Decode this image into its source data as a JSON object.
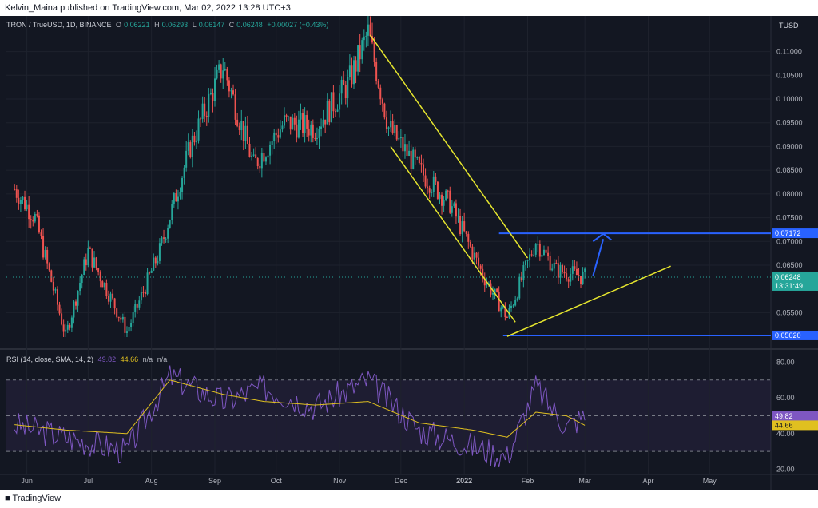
{
  "header": {
    "publisher": "Kelvin_Maina published on TradingView.com, Mar 02, 2022 13:28 UTC+3"
  },
  "footer": {
    "brand": "TradingView"
  },
  "legend": {
    "symbol": "TRON / TrueUSD, 1D, BINANCE",
    "o_label": "O",
    "o": "0.06221",
    "h_label": "H",
    "h": "0.06293",
    "l_label": "L",
    "l": "0.06147",
    "c_label": "C",
    "c": "0.06248",
    "change": "+0.00027 (+0.43%)"
  },
  "rsi_legend": {
    "name": "RSI (14, close, SMA, 14, 2)",
    "rsi": "49.82",
    "sma": "44.66",
    "na1": "n/a",
    "na2": "n/a"
  },
  "currency": "TUSD",
  "price_axis": {
    "ticks": [
      "0.11000",
      "0.10500",
      "0.10000",
      "0.09500",
      "0.09000",
      "0.08500",
      "0.08000",
      "0.07500",
      "0.07000",
      "0.06500",
      "0.05500"
    ]
  },
  "rsi_axis": {
    "ticks": [
      "80.00",
      "60.00",
      "40.00",
      "20.00"
    ]
  },
  "time_axis": {
    "labels": [
      "Jun",
      "Jul",
      "Aug",
      "Sep",
      "Oct",
      "Nov",
      "Dec",
      "2022",
      "Feb",
      "Mar",
      "Apr",
      "May"
    ]
  },
  "price_tags": {
    "resistance": "0.07172",
    "last": "0.06248",
    "countdown": "13:31:49",
    "support": "0.05020",
    "rsi": "49.82",
    "rsi_sma": "44.66"
  },
  "colors": {
    "up": "#26a69a",
    "down": "#ef5350",
    "bg": "#131722",
    "trendline": "#e6e62e",
    "level": "#2962ff",
    "rsi": "#7e57c2",
    "rsi_sma": "#e0c020"
  },
  "chart_data": [
    {
      "type": "line",
      "description": "TRXUSD daily candlestick, approximate close path",
      "x": [
        "2021-05-26",
        "2021-06-05",
        "2021-06-20",
        "2021-07-01",
        "2021-07-20",
        "2021-08-05",
        "2021-08-20",
        "2021-09-05",
        "2021-09-20",
        "2021-10-05",
        "2021-10-20",
        "2021-11-05",
        "2021-11-15",
        "2021-11-25",
        "2021-12-10",
        "2021-12-25",
        "2022-01-10",
        "2022-01-22",
        "2022-02-05",
        "2022-02-15",
        "2022-03-01"
      ],
      "series": [
        {
          "values": [
            0.081,
            0.075,
            0.05,
            0.068,
            0.051,
            0.068,
            0.09,
            0.107,
            0.086,
            0.095,
            0.094,
            0.103,
            0.114,
            0.094,
            0.085,
            0.078,
            0.063,
            0.054,
            0.07,
            0.064,
            0.0625
          ]
        }
      ],
      "ylim": [
        0.0475,
        0.1175
      ],
      "lines": {
        "resistance": 0.07172,
        "support": 0.0502,
        "last": 0.06248
      }
    },
    {
      "type": "line",
      "title": "RSI (14, close, SMA, 14, 2)",
      "x": [
        "2021-05-26",
        "2021-06-20",
        "2021-07-20",
        "2021-08-10",
        "2021-09-05",
        "2021-09-25",
        "2021-10-20",
        "2021-11-15",
        "2021-12-10",
        "2022-01-05",
        "2022-01-22",
        "2022-02-05",
        "2022-02-20",
        "2022-03-01"
      ],
      "series": [
        {
          "name": "RSI",
          "values": [
            45,
            38,
            30,
            72,
            58,
            66,
            55,
            70,
            42,
            33,
            27,
            66,
            44,
            49.82
          ]
        },
        {
          "name": "SMA",
          "values": [
            45,
            42,
            40,
            70,
            62,
            58,
            56,
            58,
            46,
            42,
            38,
            52,
            50,
            44.66
          ]
        }
      ],
      "ylim": [
        18,
        86
      ],
      "bands": [
        70,
        50,
        30
      ]
    }
  ]
}
